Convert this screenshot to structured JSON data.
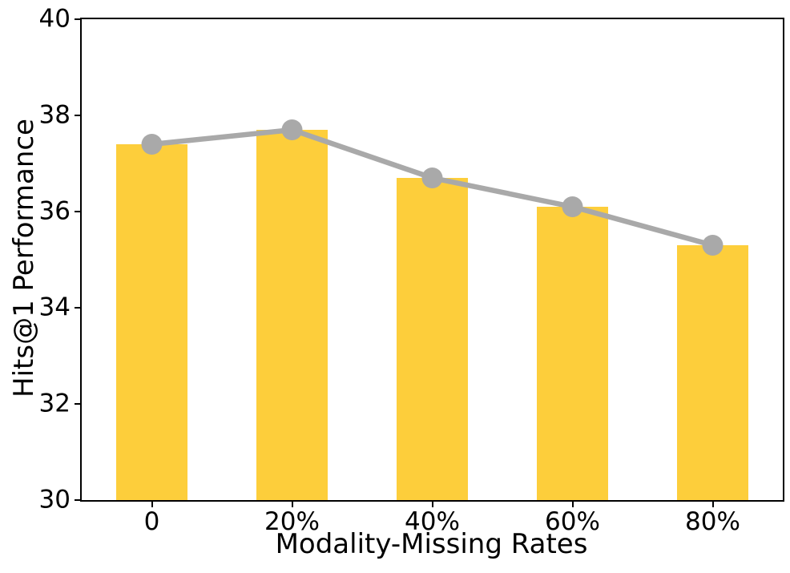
{
  "figure": {
    "background_color": "#ffffff",
    "spine_color": "#000000",
    "text_color": "#000000"
  },
  "chart_data": {
    "type": "bar",
    "categories": [
      "0",
      "20%",
      "40%",
      "60%",
      "80%"
    ],
    "series": [
      {
        "name": "hits-at-1-bars",
        "type": "bar",
        "values": [
          37.4,
          37.7,
          36.7,
          36.1,
          35.3
        ],
        "color": "#FDCE3B"
      },
      {
        "name": "hits-at-1-line",
        "type": "line",
        "values": [
          37.4,
          37.7,
          36.7,
          36.1,
          35.3
        ],
        "color": "#A9A9A9",
        "marker": "circle"
      }
    ],
    "title": "",
    "xlabel": "Modality-Missing Rates",
    "ylabel": "Hits@1 Performance",
    "ylim": [
      30,
      40
    ],
    "yticks": [
      30,
      32,
      34,
      36,
      38,
      40
    ],
    "grid": false,
    "legend_position": "none"
  }
}
